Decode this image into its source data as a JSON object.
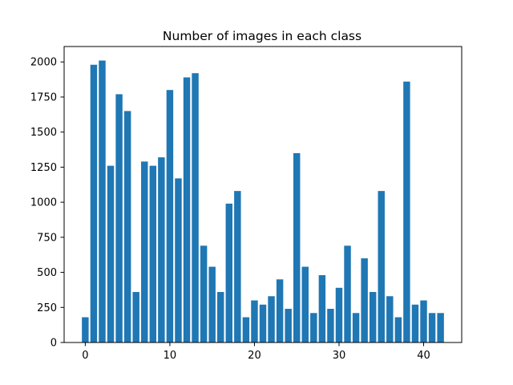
{
  "chart_data": {
    "type": "bar",
    "title": "Number of images in each class",
    "xlabel": "",
    "ylabel": "",
    "x": [
      0,
      1,
      2,
      3,
      4,
      5,
      6,
      7,
      8,
      9,
      10,
      11,
      12,
      13,
      14,
      15,
      16,
      17,
      18,
      19,
      20,
      21,
      22,
      23,
      24,
      25,
      26,
      27,
      28,
      29,
      30,
      31,
      32,
      33,
      34,
      35,
      36,
      37,
      38,
      39,
      40,
      41,
      42
    ],
    "values": [
      180,
      1980,
      2010,
      1260,
      1770,
      1650,
      360,
      1290,
      1260,
      1320,
      1800,
      1170,
      1890,
      1920,
      690,
      540,
      360,
      990,
      1080,
      180,
      300,
      270,
      330,
      450,
      240,
      1350,
      540,
      210,
      480,
      240,
      390,
      690,
      210,
      600,
      360,
      1080,
      330,
      180,
      1860,
      270,
      300,
      210,
      210
    ],
    "xlim": [
      -2.5,
      44.5
    ],
    "ylim": [
      0,
      2110
    ],
    "xticks": [
      0,
      10,
      20,
      30,
      40
    ],
    "yticks": [
      0,
      250,
      500,
      750,
      1000,
      1250,
      1500,
      1750,
      2000
    ],
    "bar_width": 0.8,
    "grid": false,
    "legend": "none",
    "colors": {
      "bar": "#1f77b4",
      "axes": "#000000",
      "background": "#ffffff"
    }
  }
}
